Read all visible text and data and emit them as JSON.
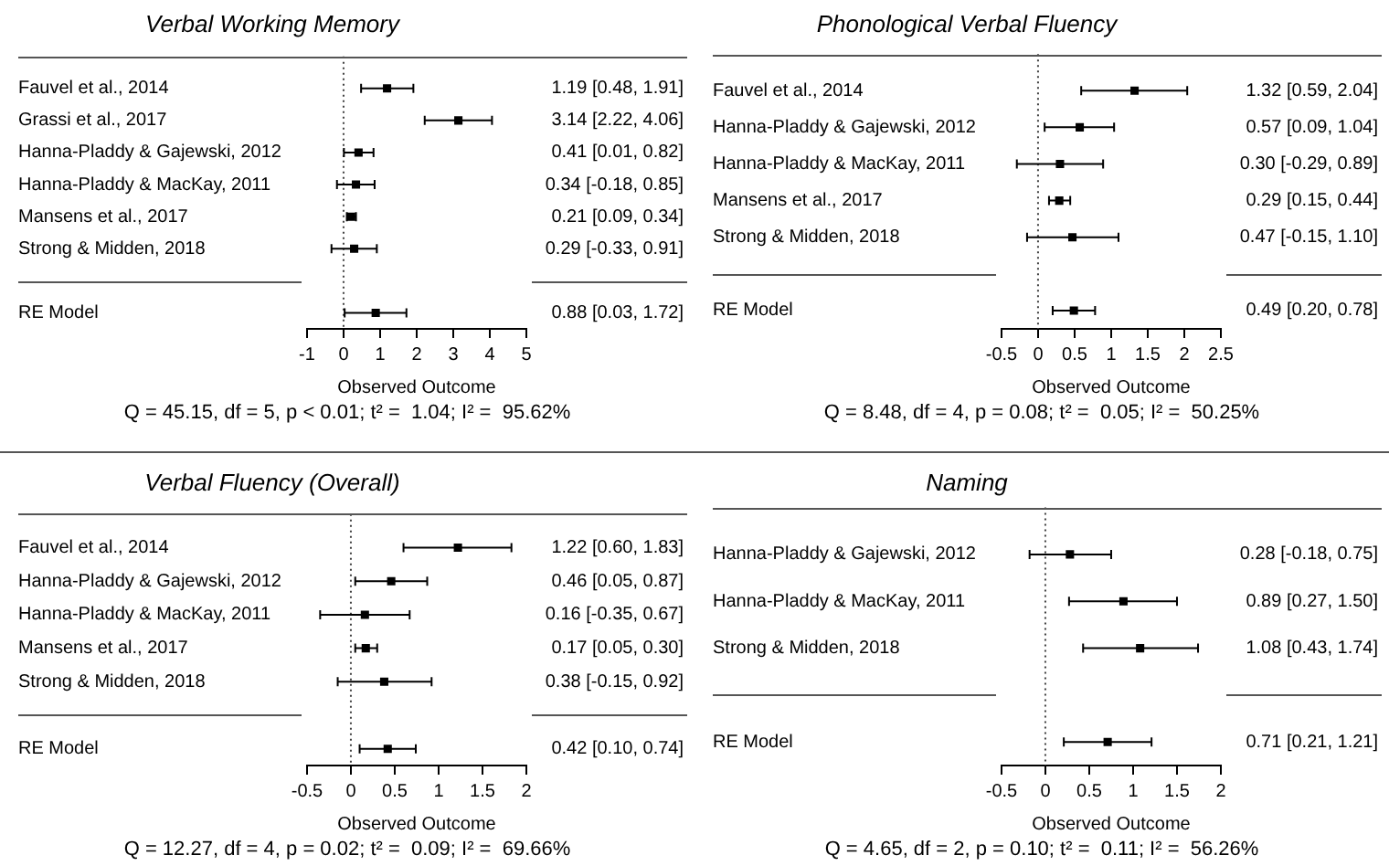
{
  "chart_data": [
    {
      "type": "scatter",
      "title": "Verbal Working Memory",
      "xlabel": "Observed Outcome",
      "orientation": "horizontal",
      "categories": [
        "Fauvel et al., 2014",
        "Grassi et al., 2017",
        "Hanna-Pladdy & Gajewski, 2012",
        "Hanna-Pladdy & MacKay, 2011",
        "Mansens et al., 2017",
        "Strong & Midden, 2018",
        null,
        "RE Model"
      ],
      "series": [
        {
          "color": "#000000",
          "marker": "square",
          "values": [
            1.19,
            3.14,
            0.41,
            0.34,
            0.21,
            0.29,
            null,
            0.88
          ],
          "errors": [
            [
              0.48,
              1.91
            ],
            [
              2.22,
              4.06
            ],
            [
              0.01,
              0.82
            ],
            [
              -0.18,
              0.85
            ],
            [
              0.09,
              0.34
            ],
            [
              -0.33,
              0.91
            ],
            null,
            [
              0.03,
              1.72
            ]
          ],
          "value_labels": [
            "1.19 [0.48, 1.91]",
            "3.14 [2.22, 4.06]",
            "0.41 [0.01, 0.82]",
            "0.34 [-0.18, 0.85]",
            "0.21 [0.09, 0.34]",
            "0.29 [-0.33, 0.91]",
            null,
            "0.88 [0.03, 1.72]"
          ]
        }
      ],
      "xlim": [
        -1,
        5
      ],
      "xticks": [
        -1,
        0,
        1,
        2,
        3,
        4,
        5
      ],
      "ref_lines": [
        {
          "axis": "x",
          "value": 0,
          "line_style": "dotted",
          "color": "#404040"
        }
      ],
      "annotations": [
        "Q = 45.15, df = 5, p < 0.01; t² =  1.04; I² =  95.62%"
      ]
    },
    {
      "type": "scatter",
      "title": "Phonological Verbal Fluency",
      "xlabel": "Observed Outcome",
      "orientation": "horizontal",
      "categories": [
        "Fauvel et al., 2014",
        "Hanna-Pladdy & Gajewski, 2012",
        "Hanna-Pladdy & MacKay, 2011",
        "Mansens et al., 2017",
        "Strong & Midden, 2018",
        null,
        "RE Model"
      ],
      "series": [
        {
          "color": "#000000",
          "marker": "square",
          "values": [
            1.32,
            0.57,
            0.3,
            0.29,
            0.47,
            null,
            0.49
          ],
          "errors": [
            [
              0.59,
              2.04
            ],
            [
              0.09,
              1.04
            ],
            [
              -0.29,
              0.89
            ],
            [
              0.15,
              0.44
            ],
            [
              -0.15,
              1.1
            ],
            null,
            [
              0.2,
              0.78
            ]
          ],
          "value_labels": [
            "1.32 [0.59, 2.04]",
            "0.57 [0.09, 1.04]",
            "0.30 [-0.29, 0.89]",
            "0.29 [0.15, 0.44]",
            "0.47 [-0.15, 1.10]",
            null,
            "0.49 [0.20, 0.78]"
          ]
        }
      ],
      "xlim": [
        -0.5,
        2.5
      ],
      "xticks": [
        -0.5,
        0,
        0.5,
        1,
        1.5,
        2,
        2.5
      ],
      "ref_lines": [
        {
          "axis": "x",
          "value": 0,
          "line_style": "dotted",
          "color": "#404040"
        }
      ],
      "annotations": [
        "Q = 8.48, df = 4, p = 0.08; t² =  0.05; I² =  50.25%"
      ]
    },
    {
      "type": "scatter",
      "title": "Verbal Fluency (Overall)",
      "xlabel": "Observed Outcome",
      "orientation": "horizontal",
      "categories": [
        "Fauvel et al., 2014",
        "Hanna-Pladdy & Gajewski, 2012",
        "Hanna-Pladdy & MacKay, 2011",
        "Mansens et al., 2017",
        "Strong & Midden, 2018",
        null,
        "RE Model"
      ],
      "series": [
        {
          "color": "#000000",
          "marker": "square",
          "values": [
            1.22,
            0.46,
            0.16,
            0.17,
            0.38,
            null,
            0.42
          ],
          "errors": [
            [
              0.6,
              1.83
            ],
            [
              0.05,
              0.87
            ],
            [
              -0.35,
              0.67
            ],
            [
              0.05,
              0.3
            ],
            [
              -0.15,
              0.92
            ],
            null,
            [
              0.1,
              0.74
            ]
          ],
          "value_labels": [
            "1.22 [0.60, 1.83]",
            "0.46 [0.05, 0.87]",
            "0.16 [-0.35, 0.67]",
            "0.17 [0.05, 0.30]",
            "0.38 [-0.15, 0.92]",
            null,
            "0.42 [0.10, 0.74]"
          ]
        }
      ],
      "xlim": [
        -0.5,
        2
      ],
      "xticks": [
        -0.5,
        0,
        0.5,
        1,
        1.5,
        2
      ],
      "ref_lines": [
        {
          "axis": "x",
          "value": 0,
          "line_style": "dotted",
          "color": "#404040"
        }
      ],
      "annotations": [
        "Q = 12.27, df = 4, p = 0.02; t² =  0.09; I² =  69.66%"
      ]
    },
    {
      "type": "scatter",
      "title": "Naming",
      "xlabel": "Observed Outcome",
      "orientation": "horizontal",
      "categories": [
        "Hanna-Pladdy & Gajewski, 2012",
        "Hanna-Pladdy & MacKay, 2011",
        "Strong & Midden, 2018",
        null,
        "RE Model"
      ],
      "series": [
        {
          "color": "#000000",
          "marker": "square",
          "values": [
            0.28,
            0.89,
            1.08,
            null,
            0.71
          ],
          "errors": [
            [
              -0.18,
              0.75
            ],
            [
              0.27,
              1.5
            ],
            [
              0.43,
              1.74
            ],
            null,
            [
              0.21,
              1.21
            ]
          ],
          "value_labels": [
            "0.28 [-0.18, 0.75]",
            "0.89 [0.27, 1.50]",
            "1.08 [0.43, 1.74]",
            null,
            "0.71 [0.21, 1.21]"
          ]
        }
      ],
      "xlim": [
        -0.5,
        2
      ],
      "xticks": [
        -0.5,
        0,
        0.5,
        1,
        1.5,
        2
      ],
      "ref_lines": [
        {
          "axis": "x",
          "value": 0,
          "line_style": "dotted",
          "color": "#404040"
        }
      ],
      "annotations": [
        "Q = 4.65, df = 2, p = 0.10; t² =  0.11; I² =  56.26%"
      ]
    }
  ]
}
